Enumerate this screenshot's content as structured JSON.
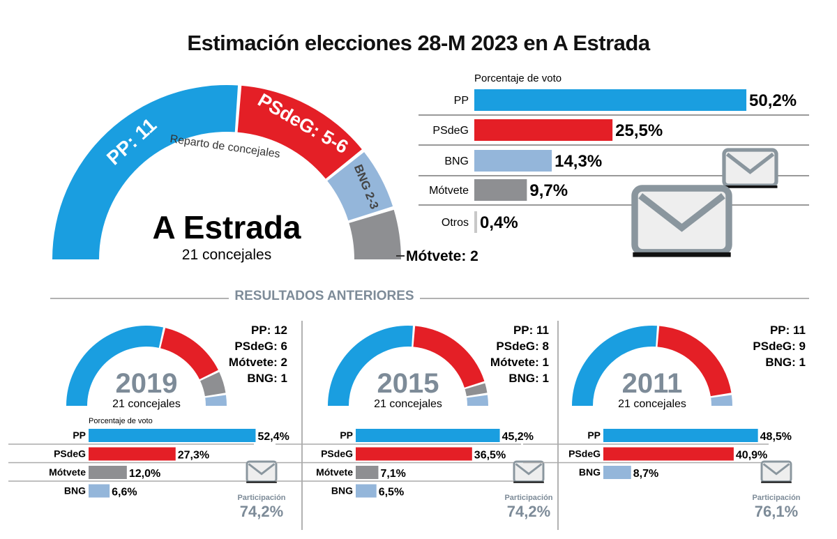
{
  "title": "Estimación elecciones 28-M 2023 en A Estrada",
  "colors": {
    "PP": "#1a9ee0",
    "PSdeG": "#e41f26",
    "BNG": "#94b6da",
    "Mótvete": "#8e8f92",
    "Otros": "#c8c8c8",
    "muted": "#7d8b98"
  },
  "main": {
    "donut_title": "Reparto de concejales",
    "place": "A Estrada",
    "subtitle": "21 concejales",
    "labels": {
      "PP": "PP: 11",
      "PSdeG": "PSdeG: 5-6",
      "BNG": "BNG 2-3",
      "Mótvete": "Mótvete: 2"
    }
  },
  "section_title": "RESULTADOS ANTERIORES",
  "chart_data": [
    {
      "type": "pie",
      "variant": "half-donut",
      "title": "Reparto de concejales",
      "total": 21,
      "categories": [
        "PP",
        "PSdeG",
        "BNG",
        "Mótvete"
      ],
      "values": [
        11,
        5.5,
        2.5,
        2
      ],
      "labels": [
        "11",
        "5-6",
        "2-3",
        "2"
      ]
    },
    {
      "type": "bar",
      "orientation": "horizontal",
      "title": "Porcentaje de voto",
      "categories": [
        "PP",
        "PSdeG",
        "BNG",
        "Mótvete",
        "Otros"
      ],
      "values": [
        50.2,
        25.5,
        14.3,
        9.7,
        0.4
      ],
      "value_labels": [
        "50,2%",
        "25,5%",
        "14,3%",
        "9,7%",
        "0,4%"
      ]
    },
    {
      "year": "2019",
      "subtitle": "21 concejales",
      "seats": {
        "categories": [
          "PP",
          "PSdeG",
          "Mótvete",
          "BNG"
        ],
        "values": [
          12,
          6,
          2,
          1
        ],
        "labels": [
          "PP: 12",
          "PSdeG: 6",
          "Mótvete: 2",
          "BNG: 1"
        ]
      },
      "votes": {
        "title": "Porcentaje de voto",
        "categories": [
          "PP",
          "PSdeG",
          "Mótvete",
          "BNG"
        ],
        "values": [
          52.4,
          27.3,
          12.0,
          6.6
        ],
        "value_labels": [
          "52,4%",
          "27,3%",
          "12,0%",
          "6,6%"
        ]
      },
      "participation_label": "Participación",
      "participation": "74,2%"
    },
    {
      "year": "2015",
      "subtitle": "21 concejales",
      "seats": {
        "categories": [
          "PP",
          "PSdeG",
          "Mótvete",
          "BNG"
        ],
        "values": [
          11,
          8,
          1,
          1
        ],
        "labels": [
          "PP: 11",
          "PSdeG: 8",
          "Mótvete: 1",
          "BNG: 1"
        ]
      },
      "votes": {
        "title": "",
        "categories": [
          "PP",
          "PSdeG",
          "Mótvete",
          "BNG"
        ],
        "values": [
          45.2,
          36.5,
          7.1,
          6.5
        ],
        "value_labels": [
          "45,2%",
          "36,5%",
          "7,1%",
          "6,5%"
        ]
      },
      "participation_label": "Participación",
      "participation": "74,2%"
    },
    {
      "year": "2011",
      "subtitle": "21 concejales",
      "seats": {
        "categories": [
          "PP",
          "PSdeG",
          "BNG"
        ],
        "values": [
          11,
          9,
          1
        ],
        "labels": [
          "PP: 11",
          "PSdeG: 9",
          "BNG: 1"
        ]
      },
      "votes": {
        "title": "",
        "categories": [
          "PP",
          "PSdeG",
          "BNG"
        ],
        "values": [
          48.5,
          40.9,
          8.7
        ],
        "value_labels": [
          "48,5%",
          "40,9%",
          "8,7%"
        ]
      },
      "participation_label": "Participación",
      "participation": "76,1%"
    }
  ]
}
